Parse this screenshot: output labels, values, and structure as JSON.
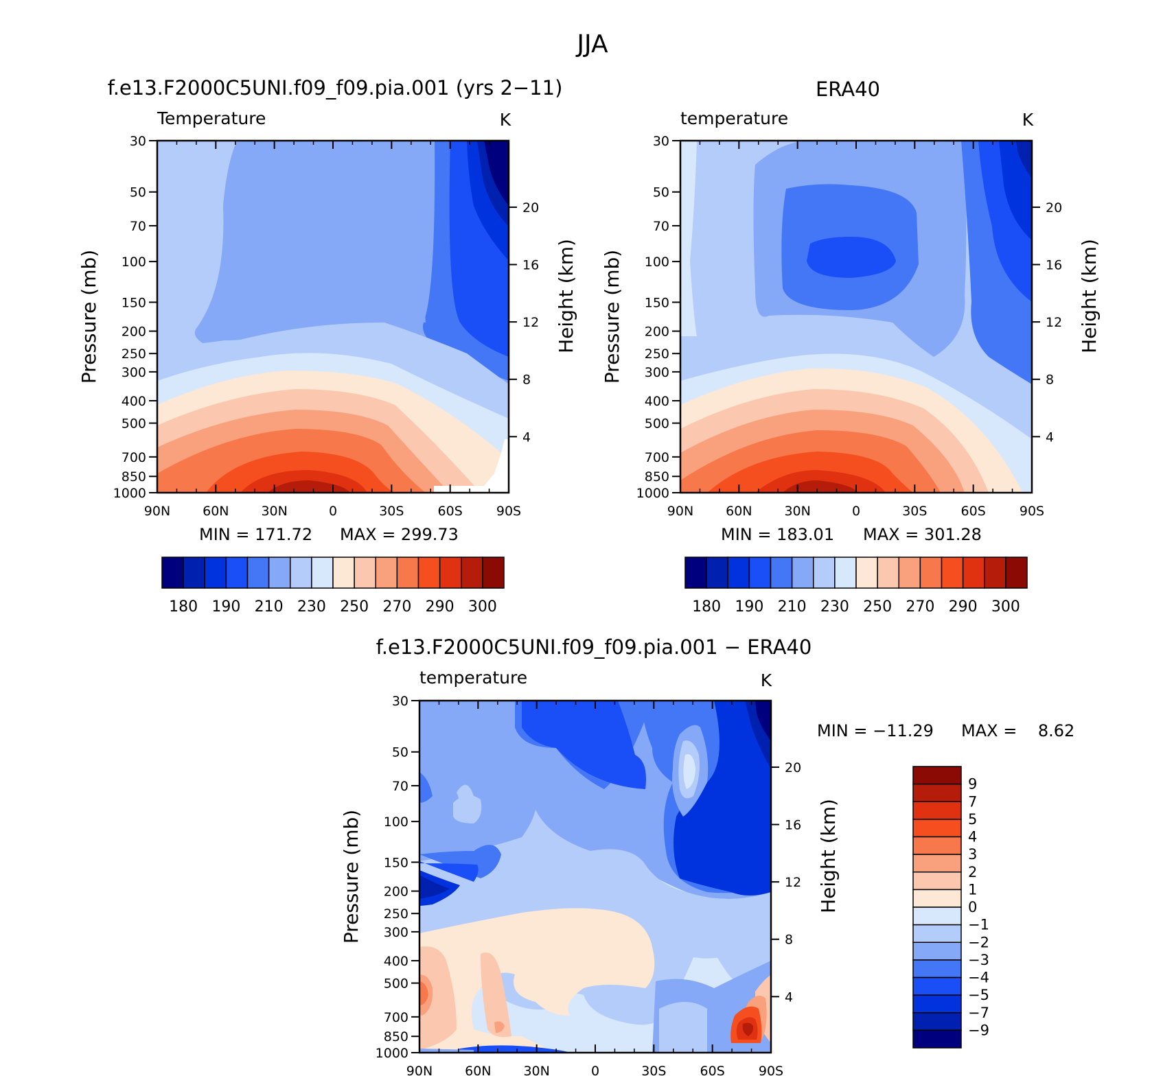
{
  "figure": {
    "title": "JJA"
  },
  "colors": {
    "abs_palette": [
      "#00007f",
      "#0020b0",
      "#0033dd",
      "#1a4ef7",
      "#4477f5",
      "#85a8f7",
      "#b4ccfa",
      "#d8e8fc",
      "#fde7d5",
      "#fbc7ae",
      "#f9a07c",
      "#f7784b",
      "#f54f1f",
      "#e03210",
      "#b51c0a",
      "#8c0a04"
    ],
    "diff_palette": [
      "#00007f",
      "#0020b0",
      "#0033dd",
      "#1a4ef7",
      "#4477f5",
      "#85a8f7",
      "#b4ccfa",
      "#d8e8fc",
      "#fde7d5",
      "#fbc7ae",
      "#f9a07c",
      "#f7784b",
      "#f54f1f",
      "#e03210",
      "#b51c0a",
      "#8c0a04"
    ]
  },
  "chart_data": [
    {
      "type": "contour",
      "panel": "model",
      "title": "f.e13.F2000C5UNI.f09_f09.pia.001 (yrs 2−11)",
      "variable_label": "Temperature",
      "units": "K",
      "ylabel": "Pressure (mb)",
      "ylabel_right": "Height (km)",
      "x_ticks": [
        "90N",
        "60N",
        "30N",
        "0",
        "30S",
        "60S",
        "90S"
      ],
      "y_ticks": [
        "30",
        "50",
        "70",
        "100",
        "150",
        "200",
        "250",
        "300",
        "400",
        "500",
        "700",
        "850",
        "1000"
      ],
      "height_ticks": [
        "20",
        "16",
        "12",
        "8",
        "4"
      ],
      "min_label": "MIN = 171.72",
      "max_label": "MAX = 299.73",
      "colorbar_labels": [
        "180",
        "190",
        "210",
        "230",
        "250",
        "270",
        "290",
        "300"
      ]
    },
    {
      "type": "contour",
      "panel": "obs",
      "title": "ERA40",
      "variable_label": "temperature",
      "units": "K",
      "ylabel": "Pressure (mb)",
      "ylabel_right": "Height (km)",
      "x_ticks": [
        "90N",
        "60N",
        "30N",
        "0",
        "30S",
        "60S",
        "90S"
      ],
      "y_ticks": [
        "30",
        "50",
        "70",
        "100",
        "150",
        "200",
        "250",
        "300",
        "400",
        "500",
        "700",
        "850",
        "1000"
      ],
      "height_ticks": [
        "20",
        "16",
        "12",
        "8",
        "4"
      ],
      "min_label": "MIN = 183.01",
      "max_label": "MAX = 301.28",
      "colorbar_labels": [
        "180",
        "190",
        "210",
        "230",
        "250",
        "270",
        "290",
        "300"
      ]
    },
    {
      "type": "contour",
      "panel": "difference",
      "title": "f.e13.F2000C5UNI.f09_f09.pia.001 − ERA40",
      "variable_label": "temperature",
      "units": "K",
      "ylabel": "Pressure (mb)",
      "ylabel_right": "Height (km)",
      "x_ticks": [
        "90N",
        "60N",
        "30N",
        "0",
        "30S",
        "60S",
        "90S"
      ],
      "y_ticks": [
        "30",
        "50",
        "70",
        "100",
        "150",
        "200",
        "250",
        "300",
        "400",
        "500",
        "700",
        "850",
        "1000"
      ],
      "height_ticks": [
        "20",
        "16",
        "12",
        "8",
        "4"
      ],
      "min_label": "MIN = −11.29",
      "max_label": "MAX =    8.62",
      "colorbar_labels": [
        "9",
        "7",
        "5",
        "4",
        "3",
        "2",
        "1",
        "0",
        "−1",
        "−2",
        "−3",
        "−4",
        "−5",
        "−7",
        "−9"
      ]
    }
  ]
}
